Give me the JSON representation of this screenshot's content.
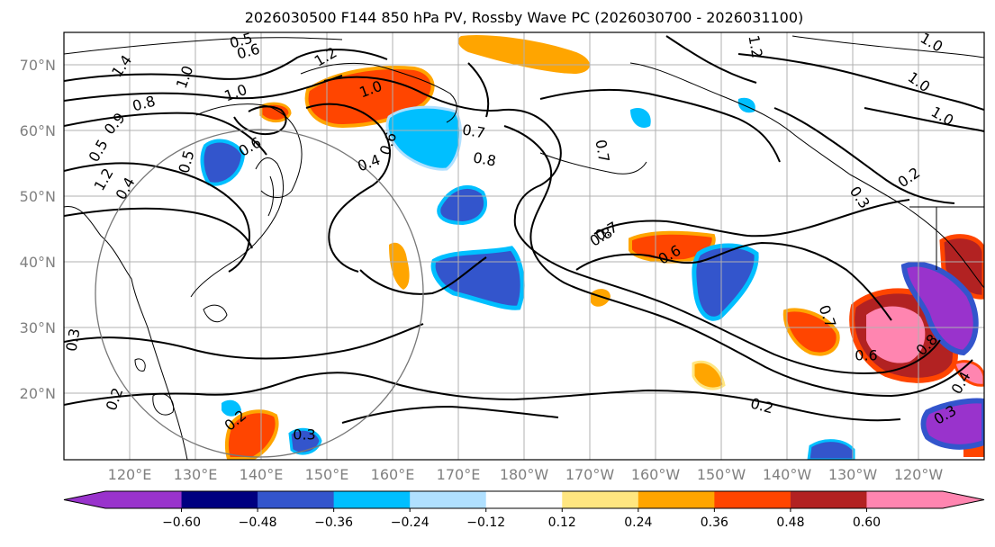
{
  "title": "2026030500 F144 850 hPa PV, Rossby Wave PC (2026030700 - 2026031100)",
  "lat_labels": [
    "70°N",
    "60°N",
    "50°N",
    "40°N",
    "30°N",
    "20°N"
  ],
  "lon_labels": [
    "120°E",
    "130°E",
    "140°E",
    "150°E",
    "160°E",
    "170°E",
    "180°W",
    "170°W",
    "160°W",
    "150°W",
    "140°W",
    "130°W",
    "120°W"
  ],
  "contour_labels": [
    "0.5",
    "0.6",
    "1.2",
    "1.4",
    "1.2",
    "1.0",
    "0.8",
    "1.0",
    "1.0",
    "1.0",
    "0.9",
    "1.0",
    "0.6",
    "0.5",
    "0.5",
    "0.4",
    "0.7",
    "0.8",
    "0.4",
    "0.6",
    "1.2",
    "1.0",
    "0.7",
    "0.3",
    "0.2",
    "0.7",
    "0.8",
    "0.6",
    "0.7",
    "0.6",
    "0.8",
    "0.2",
    "0.2",
    "0.3",
    "0.4",
    "0.3",
    "0.2",
    "0.3"
  ],
  "colorbar": {
    "colors": [
      "#9933cc",
      "#000080",
      "#3355cc",
      "#00bfff",
      "#b0e0ff",
      "#ffffff",
      "#ffe680",
      "#ffa500",
      "#ff4500",
      "#b22222",
      "#ff85b0"
    ],
    "ticks": [
      "−0.60",
      "−0.48",
      "−0.36",
      "−0.24",
      "−0.12",
      "0.12",
      "0.24",
      "0.36",
      "0.48",
      "0.60"
    ]
  }
}
